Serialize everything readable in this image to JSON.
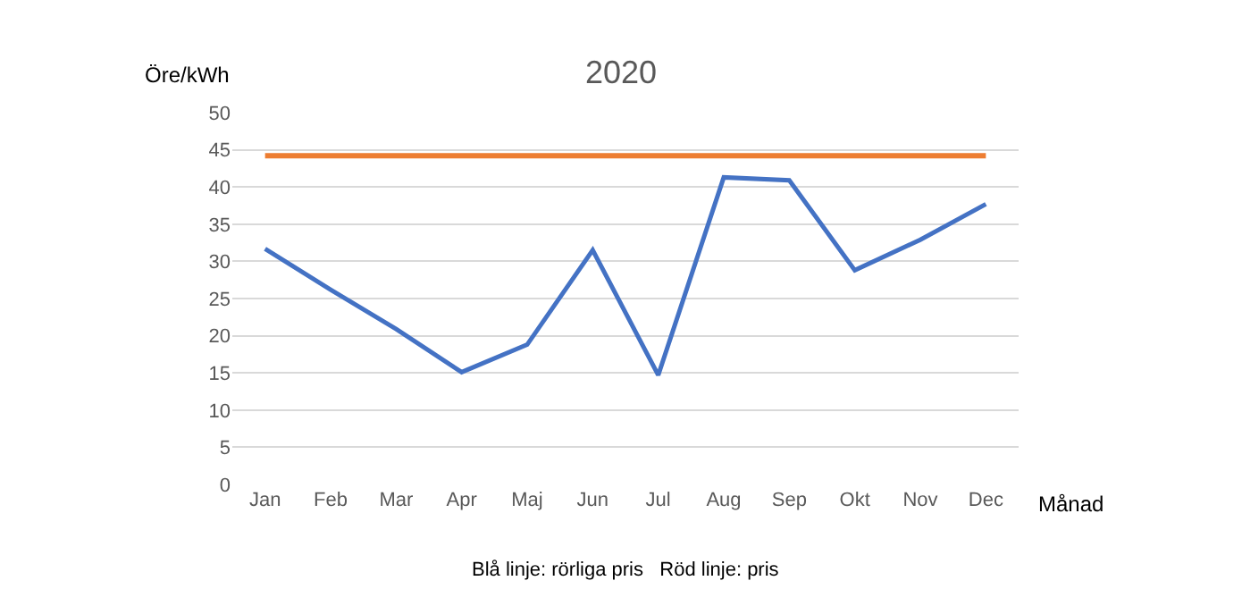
{
  "chart_data": {
    "type": "line",
    "title": "2020",
    "ylabel": "Öre/kWh",
    "xlabel": "Månad",
    "categories": [
      "Jan",
      "Feb",
      "Mar",
      "Apr",
      "Maj",
      "Jun",
      "Jul",
      "Aug",
      "Sep",
      "Okt",
      "Nov",
      "Dec"
    ],
    "series": [
      {
        "color": "#4472c4",
        "values": [
          31.7,
          26.2,
          20.9,
          15.1,
          18.8,
          31.5,
          14.7,
          41.3,
          40.9,
          28.8,
          32.9,
          37.7
        ]
      },
      {
        "color": "#ed7d31",
        "values": [
          44.2,
          44.2,
          44.2,
          44.2,
          44.2,
          44.2,
          44.2,
          44.2,
          44.2,
          44.2,
          44.2,
          44.2
        ]
      }
    ],
    "ylim": [
      0,
      50
    ],
    "yticks": [
      0,
      5,
      10,
      15,
      20,
      25,
      30,
      35,
      40,
      45,
      50
    ],
    "grid": "y",
    "legend": false,
    "marker": "none",
    "line_style": "solid",
    "annotations": [
      "Blå linje: rörliga pris   Röd linje: pris"
    ]
  }
}
